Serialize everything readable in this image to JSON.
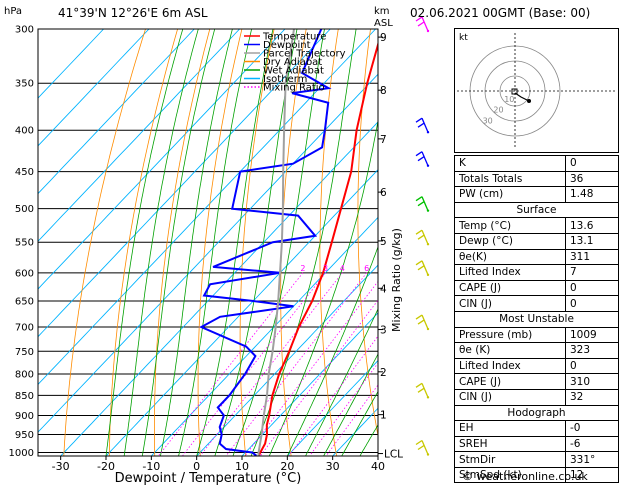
{
  "header": {
    "location": "41°39'N  12°26'E  6m  ASL",
    "datetime": "02.06.2021  00GMT  (Base: 00)"
  },
  "chart_data": {
    "type": "line",
    "title": "",
    "xlabel": "Dewpoint / Temperature (°C)",
    "ylabel": "hPa",
    "right_axis_label": "Mixing Ratio (g/kg)",
    "km_axis_label": "km\nASL",
    "xlim": [
      -35,
      40
    ],
    "ylim": [
      1010,
      300
    ],
    "x_ticks": [
      -30,
      -20,
      -10,
      0,
      10,
      20,
      30,
      40
    ],
    "pressure_ticks": [
      300,
      350,
      400,
      450,
      500,
      550,
      600,
      650,
      700,
      750,
      800,
      850,
      900,
      950,
      1000
    ],
    "km_ticks": [
      {
        "label": "9",
        "p": 307
      },
      {
        "label": "8",
        "p": 357
      },
      {
        "label": "7",
        "p": 410
      },
      {
        "label": "6",
        "p": 477
      },
      {
        "label": "5",
        "p": 548
      },
      {
        "label": "4",
        "p": 627
      },
      {
        "label": "3",
        "p": 705
      },
      {
        "label": "2",
        "p": 795
      },
      {
        "label": "1",
        "p": 898
      },
      {
        "label": "LCL",
        "p": 1003
      }
    ],
    "mixing_ratio_labels": [
      "2",
      "3",
      "4",
      "6",
      "8",
      "10",
      "15",
      "20",
      "25"
    ],
    "mixing_ratio_values": [
      2,
      3,
      4,
      6,
      8,
      10,
      15,
      20,
      25
    ],
    "legend": [
      {
        "name": "Temperature",
        "color": "#ff0000"
      },
      {
        "name": "Dewpoint",
        "color": "#0000ff"
      },
      {
        "name": "Parcel Trajectory",
        "color": "#a0a0a0"
      },
      {
        "name": "Dry Adiabat",
        "color": "#ff8c00"
      },
      {
        "name": "Wet Adiabat",
        "color": "#00a000"
      },
      {
        "name": "Isotherm",
        "color": "#00b4ff"
      },
      {
        "name": "Mixing Ratio",
        "color": "#ff00ff"
      }
    ],
    "series": [
      {
        "name": "Temperature",
        "color": "#ff0000",
        "points": [
          [
            1009,
            13.6
          ],
          [
            1000,
            13.3
          ],
          [
            975,
            12.5
          ],
          [
            950,
            11.0
          ],
          [
            925,
            9.0
          ],
          [
            900,
            7.5
          ],
          [
            850,
            4.0
          ],
          [
            800,
            1.0
          ],
          [
            750,
            -1.5
          ],
          [
            700,
            -4.5
          ],
          [
            650,
            -7.0
          ],
          [
            600,
            -10.5
          ],
          [
            550,
            -15.0
          ],
          [
            500,
            -20.0
          ],
          [
            450,
            -25.5
          ],
          [
            400,
            -33.0
          ],
          [
            350,
            -40.5
          ],
          [
            300,
            -48.5
          ]
        ]
      },
      {
        "name": "Dewpoint",
        "color": "#0000ff",
        "points": [
          [
            1009,
            13.1
          ],
          [
            1000,
            11.5
          ],
          [
            990,
            5.0
          ],
          [
            975,
            2.5
          ],
          [
            950,
            1.0
          ],
          [
            930,
            -1.0
          ],
          [
            900,
            -2.5
          ],
          [
            880,
            -5.5
          ],
          [
            850,
            -5.5
          ],
          [
            800,
            -6.5
          ],
          [
            760,
            -8.0
          ],
          [
            740,
            -12.0
          ],
          [
            700,
            -26.0
          ],
          [
            680,
            -24.0
          ],
          [
            660,
            -10.0
          ],
          [
            650,
            -20.0
          ],
          [
            640,
            -32.0
          ],
          [
            620,
            -33.0
          ],
          [
            600,
            -20.0
          ],
          [
            590,
            -36.0
          ],
          [
            560,
            -30.0
          ],
          [
            550,
            -28.0
          ],
          [
            540,
            -20.0
          ],
          [
            510,
            -28.0
          ],
          [
            500,
            -44.0
          ],
          [
            450,
            -50.0
          ],
          [
            440,
            -40.0
          ],
          [
            420,
            -37.0
          ],
          [
            400,
            -40.0
          ],
          [
            370,
            -45.0
          ],
          [
            360,
            -55.0
          ],
          [
            355,
            -48.0
          ],
          [
            340,
            -57.0
          ],
          [
            300,
            -62.0
          ]
        ]
      },
      {
        "name": "Parcel Trajectory",
        "color": "#a0a0a0",
        "points": [
          [
            1009,
            13.6
          ],
          [
            1003,
            13.1
          ],
          [
            950,
            9.8
          ],
          [
            900,
            6.3
          ],
          [
            850,
            2.8
          ],
          [
            800,
            -1.3
          ],
          [
            750,
            -5.2
          ],
          [
            700,
            -9.6
          ],
          [
            650,
            -14.5
          ],
          [
            600,
            -20.0
          ],
          [
            550,
            -26.0
          ],
          [
            500,
            -32.8
          ],
          [
            450,
            -40.5
          ],
          [
            400,
            -49.0
          ],
          [
            350,
            -58.5
          ],
          [
            300,
            -68.0
          ]
        ]
      }
    ],
    "wind_barbs": [
      {
        "p": 300,
        "color": "#ff00ff"
      },
      {
        "p": 400,
        "color": "#0000ff"
      },
      {
        "p": 440,
        "color": "#0000ff"
      },
      {
        "p": 500,
        "color": "#00c000"
      },
      {
        "p": 550,
        "color": "#c8c800"
      },
      {
        "p": 600,
        "color": "#c8c800"
      },
      {
        "p": 700,
        "color": "#c8c800"
      },
      {
        "p": 850,
        "color": "#c8c800"
      },
      {
        "p": 1000,
        "color": "#c8c800"
      }
    ]
  },
  "hodograph": {
    "label": "kt",
    "ring_labels": [
      "10",
      "20",
      "30"
    ]
  },
  "indices": [
    {
      "label": "K",
      "value": "0"
    },
    {
      "label": "Totals Totals",
      "value": "36"
    },
    {
      "label": "PW (cm)",
      "value": "1.48"
    }
  ],
  "surface": {
    "title": "Surface",
    "rows": [
      {
        "label": "Temp (°C)",
        "value": "13.6"
      },
      {
        "label": "Dewp (°C)",
        "value": "13.1"
      },
      {
        "label": "θe(K)",
        "value": "311"
      },
      {
        "label": "Lifted Index",
        "value": "7"
      },
      {
        "label": "CAPE (J)",
        "value": "0"
      },
      {
        "label": "CIN (J)",
        "value": "0"
      }
    ]
  },
  "most_unstable": {
    "title": "Most Unstable",
    "rows": [
      {
        "label": "Pressure (mb)",
        "value": "1009"
      },
      {
        "label": "θe (K)",
        "value": "323"
      },
      {
        "label": "Lifted Index",
        "value": "0"
      },
      {
        "label": "CAPE (J)",
        "value": "310"
      },
      {
        "label": "CIN (J)",
        "value": "32"
      }
    ]
  },
  "hodograph_table": {
    "title": "Hodograph",
    "rows": [
      {
        "label": "EH",
        "value": "-0"
      },
      {
        "label": "SREH",
        "value": "-6"
      },
      {
        "label": "StmDir",
        "value": "331°"
      },
      {
        "label": "StmSpd (kt)",
        "value": "12"
      }
    ]
  },
  "footer": "© weatheronline.co.uk"
}
